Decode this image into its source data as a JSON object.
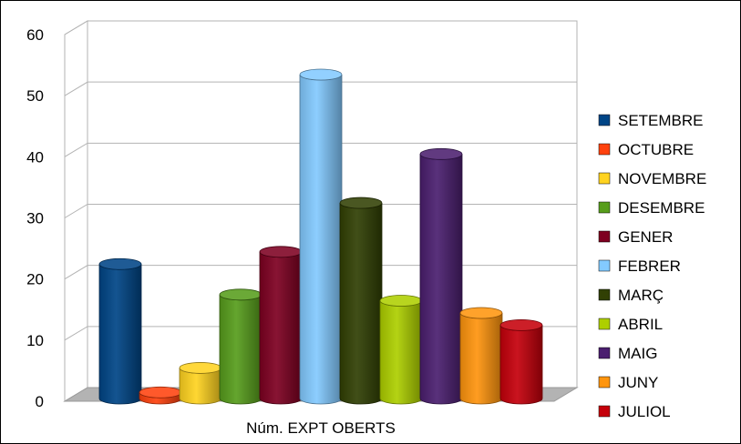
{
  "chart_data": {
    "type": "bar",
    "style": "3d-cylinder",
    "title": "",
    "xlabel": "",
    "ylabel": "",
    "categories": [
      "Núm. EXPT OBERTS"
    ],
    "series": [
      {
        "name": "SETEMBRE",
        "values": [
          22
        ],
        "color": "#004586"
      },
      {
        "name": "OCTUBRE",
        "values": [
          1
        ],
        "color": "#ff420e"
      },
      {
        "name": "NOVEMBRE",
        "values": [
          5
        ],
        "color": "#ffd320"
      },
      {
        "name": "DESEMBRE",
        "values": [
          17
        ],
        "color": "#579d1c"
      },
      {
        "name": "GENER",
        "values": [
          24
        ],
        "color": "#7e0021"
      },
      {
        "name": "FEBRER",
        "values": [
          53
        ],
        "color": "#83caff"
      },
      {
        "name": "MARÇ",
        "values": [
          32
        ],
        "color": "#314004"
      },
      {
        "name": "ABRIL",
        "values": [
          16
        ],
        "color": "#aecf00"
      },
      {
        "name": "MAIG",
        "values": [
          40
        ],
        "color": "#4b1f6f"
      },
      {
        "name": "JUNY",
        "values": [
          14
        ],
        "color": "#ff950e"
      },
      {
        "name": "JULIOL",
        "values": [
          12
        ],
        "color": "#c5000b"
      }
    ],
    "ylim": [
      0,
      60
    ],
    "yticks": [
      0,
      10,
      20,
      30,
      40,
      50,
      60
    ],
    "grid": true,
    "legend": "right"
  }
}
